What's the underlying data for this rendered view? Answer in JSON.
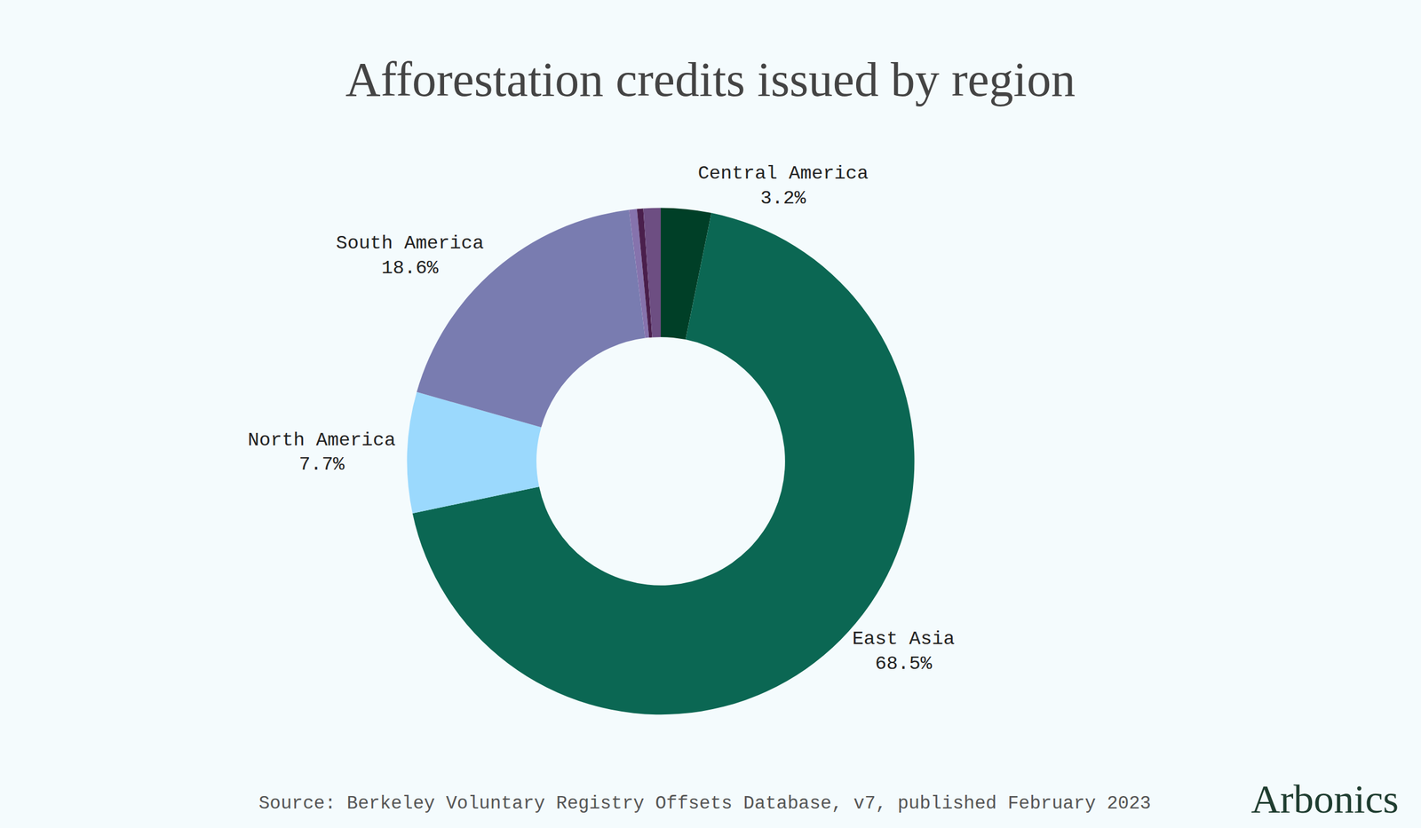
{
  "chart_data": {
    "type": "pie",
    "title": "Afforestation credits issued by region",
    "categories": [
      "Central America",
      "East Asia",
      "North America",
      "South America",
      null,
      null,
      null
    ],
    "values": [
      3.2,
      68.5,
      7.7,
      18.6,
      0.5,
      0.4,
      1.1
    ],
    "value_labels": [
      "3.2%",
      "68.5%",
      "7.7%",
      "18.6%",
      null,
      null,
      null
    ],
    "colors": [
      "#003f27",
      "#0b6753",
      "#9bd9fd",
      "#797cb0",
      "#8673ad",
      "#4a1f4c",
      "#6d4e82"
    ],
    "data_labels": true,
    "annotations": [
      "Source: Berkeley Voluntary Registry Offsets Database, v7, published February 2023",
      "Arbonics"
    ]
  }
}
